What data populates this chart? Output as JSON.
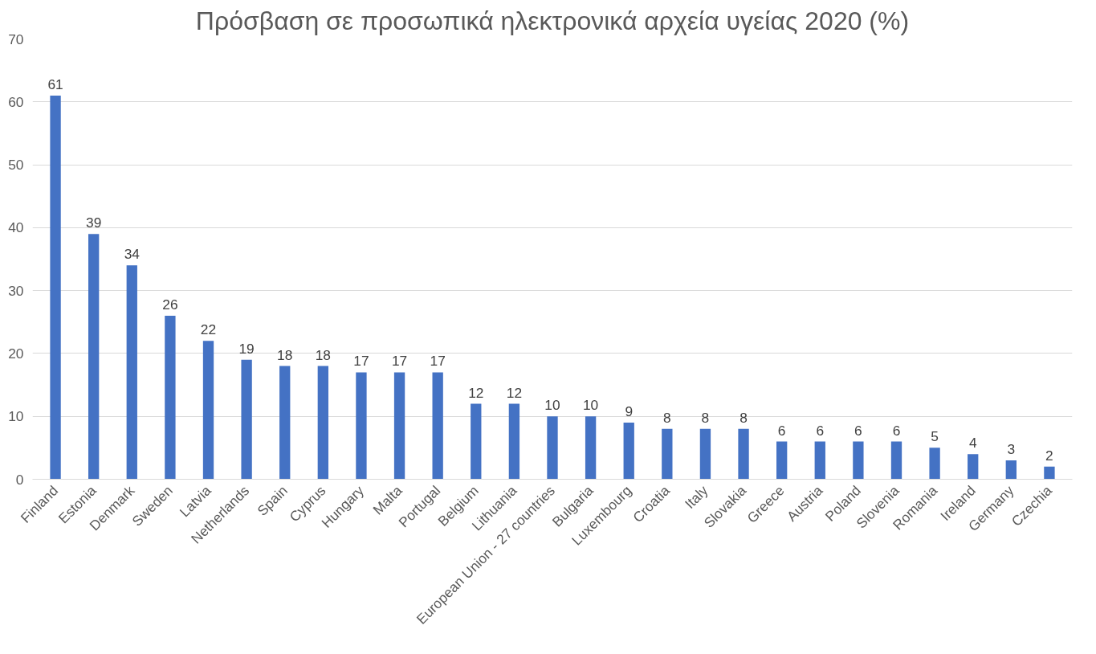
{
  "chart_data": {
    "type": "bar",
    "title": "Πρόσβαση σε προσωπικά ηλεκτρονικά αρχεία υγείας 2020 (%)",
    "categories": [
      "Finland",
      "Estonia",
      "Denmark",
      "Sweden",
      "Latvia",
      "Netherlands",
      "Spain",
      "Cyprus",
      "Hungary",
      "Malta",
      "Portugal",
      "Belgium",
      "Lithuania",
      "European Union - 27 countries",
      "Bulgaria",
      "Luxembourg",
      "Croatia",
      "Italy",
      "Slovakia",
      "Greece",
      "Austria",
      "Poland",
      "Slovenia",
      "Romania",
      "Ireland",
      "Germany",
      "Czechia"
    ],
    "values": [
      61,
      39,
      34,
      26,
      22,
      19,
      18,
      18,
      17,
      17,
      17,
      12,
      12,
      10,
      10,
      9,
      8,
      8,
      8,
      6,
      6,
      6,
      6,
      5,
      4,
      3,
      2
    ],
    "color": "#4472c4",
    "ylim": [
      0,
      70
    ],
    "yticks": [
      0,
      10,
      20,
      30,
      40,
      50,
      60,
      70
    ],
    "grid": "y",
    "data_labels": true
  }
}
